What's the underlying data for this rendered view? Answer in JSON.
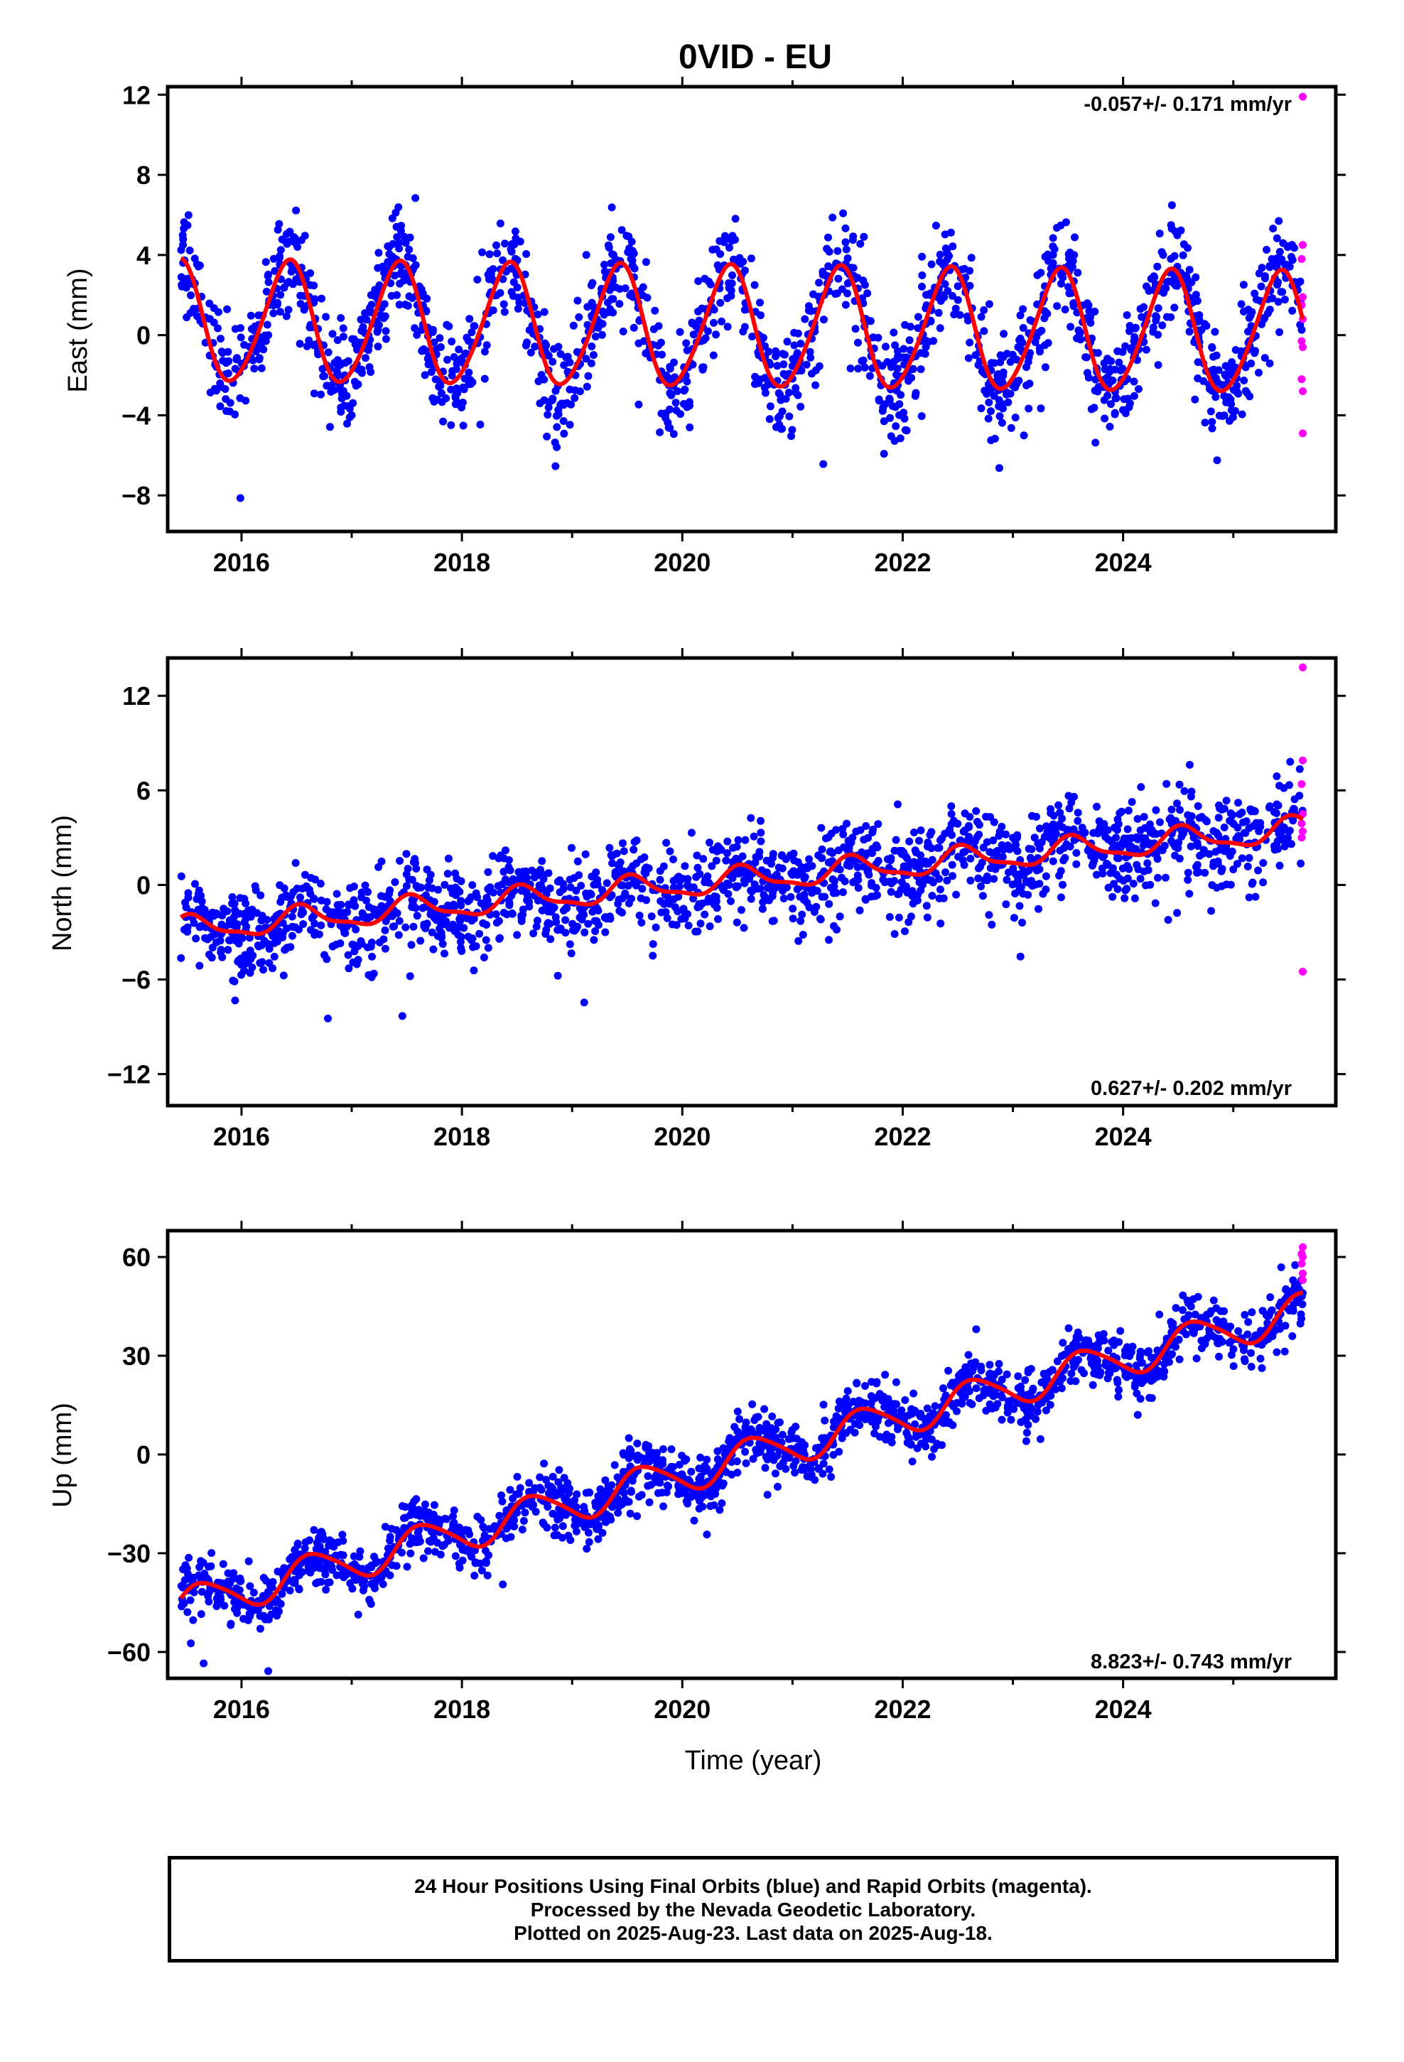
{
  "title": "0VID - EU",
  "colors": {
    "final": "#0000ff",
    "rapid": "#ff00ff",
    "model": "#ff0000",
    "axis": "#000000"
  },
  "xlabel": "Time (year)",
  "footer": {
    "line1": "24 Hour Positions Using Final Orbits (blue) and Rapid Orbits (magenta).",
    "line2": "Processed by the Nevada Geodetic Laboratory.",
    "line3": "Plotted on 2025-Aug-23. Last data on 2025-Aug-18."
  },
  "chart_data": [
    {
      "type": "scatter",
      "component": "east",
      "ylabel": "East (mm)",
      "rate_text": "-0.057+/- 0.171 mm/yr",
      "rate_position": "top-right",
      "xlim": [
        2015.33,
        2025.93
      ],
      "ylim": [
        -9.8,
        12.4
      ],
      "xticks": [
        2016,
        2018,
        2020,
        2022,
        2024
      ],
      "yticks": [
        -8,
        -4,
        0,
        4,
        8,
        12
      ],
      "data_span": [
        2015.45,
        2025.63
      ],
      "model": {
        "offset": 0.35,
        "rate": -0.057,
        "reference_year": 2020.5,
        "annual_amplitude": 3.0,
        "annual_peak_phase": 0.42,
        "semiannual_amplitude": 0.3
      },
      "scatter_sigma": 1.3,
      "rapid_points": [
        [
          2025.63,
          11.9
        ],
        [
          2025.63,
          4.5
        ],
        [
          2025.62,
          3.8
        ],
        [
          2025.63,
          1.9
        ],
        [
          2025.62,
          1.5
        ],
        [
          2025.63,
          0.8
        ],
        [
          2025.62,
          -0.3
        ],
        [
          2025.63,
          -0.6
        ],
        [
          2025.62,
          -2.2
        ],
        [
          2025.63,
          -2.8
        ],
        [
          2025.63,
          -4.9
        ]
      ],
      "series": [
        {
          "name": "Final Orbits",
          "marker": "final"
        },
        {
          "name": "Rapid Orbits",
          "marker": "rapid"
        }
      ]
    },
    {
      "type": "scatter",
      "component": "north",
      "ylabel": "North (mm)",
      "rate_text": "0.627+/- 0.202 mm/yr",
      "rate_position": "bottom-right",
      "xlim": [
        2015.33,
        2025.93
      ],
      "ylim": [
        -14,
        14.4
      ],
      "xticks": [
        2016,
        2018,
        2020,
        2022,
        2024
      ],
      "yticks": [
        -12,
        -6,
        0,
        6,
        12
      ],
      "data_span": [
        2015.45,
        2025.63
      ],
      "model": {
        "offset": 0.3,
        "rate": 0.627,
        "reference_year": 2020.5,
        "annual_amplitude": 0.75,
        "annual_peak_phase": 0.55,
        "semiannual_amplitude": 0.25
      },
      "scatter_sigma": 1.4,
      "rapid_points": [
        [
          2025.63,
          13.8
        ],
        [
          2025.63,
          7.9
        ],
        [
          2025.62,
          6.4
        ],
        [
          2025.63,
          4.5
        ],
        [
          2025.62,
          3.9
        ],
        [
          2025.63,
          3.4
        ],
        [
          2025.62,
          3.0
        ],
        [
          2025.63,
          -5.5
        ]
      ],
      "series": [
        {
          "name": "Final Orbits",
          "marker": "final"
        },
        {
          "name": "Rapid Orbits",
          "marker": "rapid"
        }
      ]
    },
    {
      "type": "scatter",
      "component": "up",
      "ylabel": "Up (mm)",
      "rate_text": "8.823+/- 0.743 mm/yr",
      "rate_position": "bottom-right",
      "xlim": [
        2015.33,
        2025.93
      ],
      "ylim": [
        -68,
        68
      ],
      "xticks": [
        2016,
        2018,
        2020,
        2022,
        2024
      ],
      "yticks": [
        -60,
        -30,
        0,
        30,
        60
      ],
      "data_span": [
        2015.45,
        2025.63
      ],
      "model": {
        "offset": -1.5,
        "rate": 8.823,
        "reference_year": 2020.5,
        "annual_amplitude": 5.5,
        "annual_peak_phase": 0.65,
        "semiannual_amplitude": 0.8
      },
      "scatter_sigma": 4.2,
      "rapid_points": [
        [
          2025.63,
          63
        ],
        [
          2025.62,
          61
        ],
        [
          2025.63,
          60
        ],
        [
          2025.62,
          58
        ],
        [
          2025.63,
          55
        ],
        [
          2025.63,
          53
        ]
      ],
      "series": [
        {
          "name": "Final Orbits",
          "marker": "final"
        },
        {
          "name": "Rapid Orbits",
          "marker": "rapid"
        }
      ]
    }
  ]
}
